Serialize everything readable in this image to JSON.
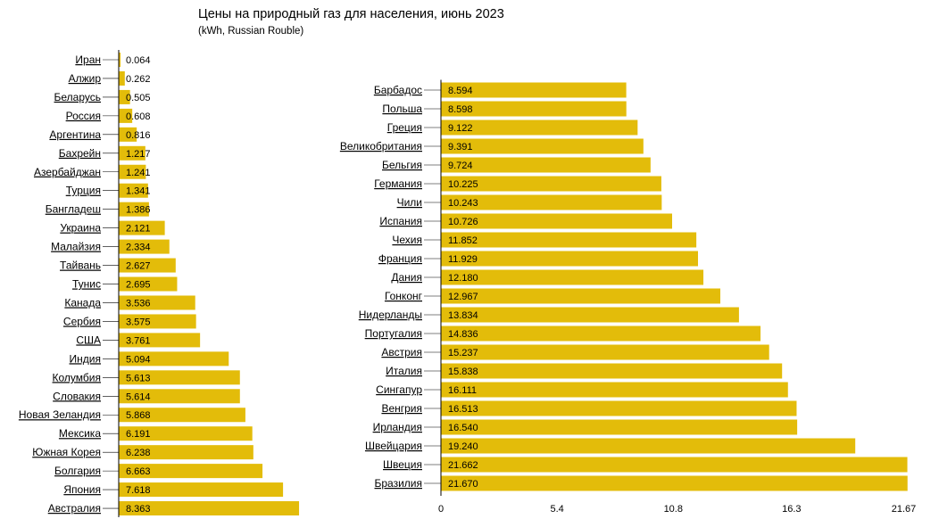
{
  "chart_data": {
    "type": "bar",
    "orientation": "horizontal",
    "title": "Цены на природный газ для населения, июнь 2023",
    "subtitle": "(kWh, Russian Rouble)",
    "xlim": [
      0,
      21.67
    ],
    "x_ticks": [
      "0",
      "5.4",
      "10.8",
      "16.3",
      "21.67"
    ],
    "bar_color": "#e3bc0a",
    "panels": [
      {
        "categories": [
          "Иран",
          "Алжир",
          "Беларусь",
          "Россия",
          "Аргентина",
          "Бахрейн",
          "Азербайджан",
          "Турция",
          "Бангладеш",
          "Украина",
          "Малайзия",
          "Тайвань",
          "Тунис",
          "Канада",
          "Сербия",
          "США",
          "Индия",
          "Колумбия",
          "Словакия",
          "Новая Зеландия",
          "Мексика",
          "Южная Корея",
          "Болгария",
          "Япония",
          "Австралия"
        ],
        "values": [
          0.064,
          0.262,
          0.505,
          0.608,
          0.816,
          1.217,
          1.241,
          1.341,
          1.386,
          2.121,
          2.334,
          2.627,
          2.695,
          3.536,
          3.575,
          3.761,
          5.094,
          5.613,
          5.614,
          5.868,
          6.191,
          6.238,
          6.663,
          7.618,
          8.363
        ],
        "labels": [
          "0.064",
          "0.262",
          "0.505",
          "0.608",
          "0.816",
          "1.217",
          "1.241",
          "1.341",
          "1.386",
          "2.121",
          "2.334",
          "2.627",
          "2.695",
          "3.536",
          "3.575",
          "3.761",
          "5.094",
          "5.613",
          "5.614",
          "5.868",
          "6.191",
          "6.238",
          "6.663",
          "7.618",
          "8.363"
        ]
      },
      {
        "categories": [
          "Барбадос",
          "Польша",
          "Греция",
          "Великобритания",
          "Бельгия",
          "Германия",
          "Чили",
          "Испания",
          "Чехия",
          "Франция",
          "Дания",
          "Гонконг",
          "Нидерланды",
          "Португалия",
          "Австрия",
          "Италия",
          "Сингапур",
          "Венгрия",
          "Ирландия",
          "Швейцария",
          "Швеция",
          "Бразилия"
        ],
        "values": [
          8.594,
          8.598,
          9.122,
          9.391,
          9.724,
          10.225,
          10.243,
          10.726,
          11.852,
          11.929,
          12.18,
          12.967,
          13.834,
          14.836,
          15.237,
          15.838,
          16.111,
          16.513,
          16.54,
          19.24,
          21.662,
          21.67
        ],
        "labels": [
          "8.594",
          "8.598",
          "9.122",
          "9.391",
          "9.724",
          "10.225",
          "10.243",
          "10.726",
          "11.852",
          "11.929",
          "12.180",
          "12.967",
          "13.834",
          "14.836",
          "15.237",
          "15.838",
          "16.111",
          "16.513",
          "16.540",
          "19.240",
          "21.662",
          "21.670"
        ]
      }
    ]
  }
}
